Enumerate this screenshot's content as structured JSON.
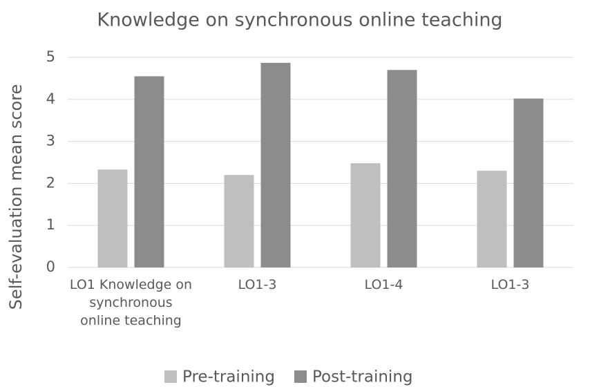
{
  "chart_data": {
    "type": "bar",
    "title": "Knowledge on synchronous online teaching",
    "y_label": "Self-evaluation mean score",
    "categories": [
      "LO1 Knowledge on synchronous online teaching",
      "LO1-3",
      "LO1-4",
      "LO1-3"
    ],
    "series": [
      {
        "name": "Pre-training",
        "color": "#bfbfbf",
        "values": [
          2.33,
          2.2,
          2.48,
          2.3
        ]
      },
      {
        "name": "Post-training",
        "color": "#8c8c8c",
        "values": [
          4.55,
          4.87,
          4.7,
          4.02
        ]
      }
    ],
    "ylim": [
      0,
      5
    ],
    "yticks": [
      0,
      1,
      2,
      3,
      4,
      5
    ],
    "grid": true,
    "legend": "bottom"
  }
}
